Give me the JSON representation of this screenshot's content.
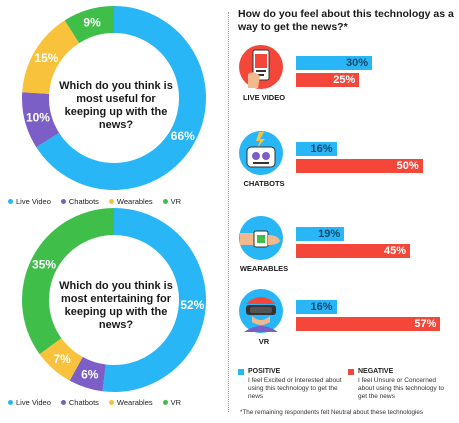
{
  "colors": {
    "live_video": "#29b6f6",
    "chatbots": "#7b5fc7",
    "wearables": "#f9c23c",
    "vr": "#3fbf4a",
    "positive": "#29b6f6",
    "negative": "#f4473a"
  },
  "chart_data": [
    {
      "type": "pie",
      "title": "Which do you think is most useful for keeping up with the news?",
      "categories": [
        "Live Video",
        "Chatbots",
        "Wearables",
        "VR"
      ],
      "values": [
        66,
        10,
        15,
        9
      ],
      "value_labels": [
        "66%",
        "10%",
        "15%",
        "9%"
      ],
      "legend_position": "bottom"
    },
    {
      "type": "pie",
      "title": "Which do you think is most entertaining for keeping up with the news?",
      "categories": [
        "Live Video",
        "Chatbots",
        "Wearables",
        "VR"
      ],
      "values": [
        52,
        6,
        7,
        35
      ],
      "value_labels": [
        "52%",
        "6%",
        "7%",
        "35%"
      ],
      "legend_position": "bottom"
    },
    {
      "type": "bar",
      "title": "How do you feel about this technology as a way to get the news?*",
      "categories": [
        "LIVE VIDEO",
        "CHATBOTS",
        "WEARABLES",
        "VR"
      ],
      "series": [
        {
          "name": "POSITIVE",
          "values": [
            30,
            16,
            19,
            16
          ],
          "value_labels": [
            "30%",
            "16%",
            "19%",
            "16%"
          ]
        },
        {
          "name": "NEGATIVE",
          "values": [
            25,
            50,
            45,
            57
          ],
          "value_labels": [
            "25%",
            "50%",
            "45%",
            "57%"
          ]
        }
      ],
      "xlim": [
        0,
        60
      ]
    }
  ],
  "legend_keys": {
    "positive_title": "POSITIVE",
    "positive_desc": "I feel Excited or Interested about using this technology to get the news",
    "negative_title": "NEGATIVE",
    "negative_desc": "I feel Unsure or Concerned about using this technology to get the news"
  },
  "footnote": "*The remaining respondents felt Neutral about these technologies",
  "icons": [
    "smartphone-video-icon",
    "chatbot-robot-icon",
    "smartwatch-icon",
    "vr-headset-icon"
  ]
}
